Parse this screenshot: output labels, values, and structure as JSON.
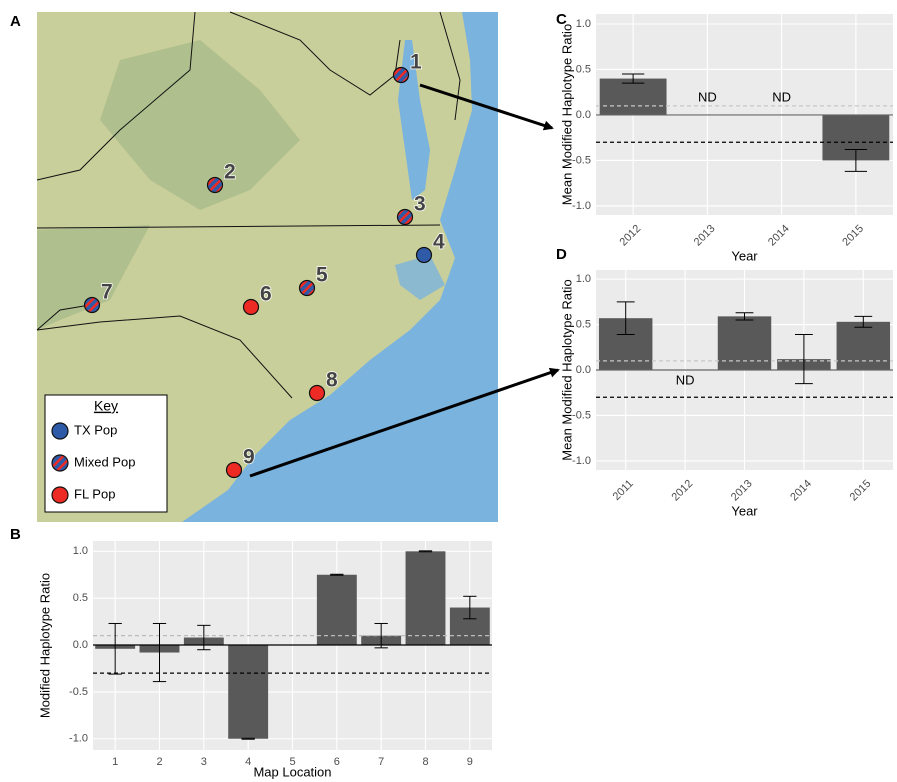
{
  "panels": [
    "A",
    "B",
    "C",
    "D"
  ],
  "map": {
    "key": {
      "title": "Key",
      "entries": [
        {
          "name": "TX Pop",
          "color": "#2f5aa8"
        },
        {
          "name": "Mixed Pop",
          "color": "mixed"
        },
        {
          "name": "FL Pop",
          "color": "#ee2a24"
        }
      ]
    },
    "sites": [
      {
        "label": "1",
        "population": "Mixed Pop"
      },
      {
        "label": "2",
        "population": "Mixed Pop"
      },
      {
        "label": "3",
        "population": "Mixed Pop"
      },
      {
        "label": "4",
        "population": "TX Pop"
      },
      {
        "label": "5",
        "population": "Mixed Pop"
      },
      {
        "label": "6",
        "population": "FL Pop"
      },
      {
        "label": "7",
        "population": "Mixed Pop"
      },
      {
        "label": "8",
        "population": "FL Pop"
      },
      {
        "label": "9",
        "population": "FL Pop"
      }
    ]
  },
  "chart_data": [
    {
      "type": "bar",
      "x_label": "Map Location",
      "y_label": "Modified Haplotype Ratio",
      "categories": [
        "1",
        "2",
        "3",
        "4",
        "5",
        "6",
        "7",
        "8",
        "9"
      ],
      "values": [
        -0.04,
        -0.08,
        0.08,
        -1.0,
        null,
        0.75,
        0.1,
        1.0,
        0.4
      ],
      "errors": [
        0.27,
        0.31,
        0.13,
        0.005,
        null,
        0.005,
        0.13,
        0.005,
        0.12
      ],
      "color": "#595959",
      "ylim": [
        -1.12,
        1.11
      ],
      "yticks": [
        {
          "value": -1.0,
          "label": "-1.0"
        },
        {
          "value": -0.5,
          "label": "-0.5"
        },
        {
          "value": 0.0,
          "label": "0.0"
        },
        {
          "value": 0.5,
          "label": "0.5"
        },
        {
          "value": 1.0,
          "label": "1.0"
        }
      ],
      "hlines": [
        {
          "value": 0,
          "color": "#000000",
          "dashed": false
        },
        {
          "value": 0.1,
          "color": "#bbbbbb",
          "dashed": true
        },
        {
          "value": -0.3,
          "color": "#000000",
          "dashed": true
        }
      ],
      "grid": true
    },
    {
      "type": "bar",
      "x_label": "Year",
      "y_label": "Mean Modified Haplotype Ratio",
      "categories": [
        "2012",
        "2013",
        "2014",
        "2015"
      ],
      "values": [
        0.4,
        null,
        null,
        -0.5
      ],
      "value_labels": [
        null,
        "ND",
        "ND",
        null
      ],
      "errors": [
        0.05,
        null,
        null,
        0.12
      ],
      "color": "#595959",
      "ylim": [
        -1.1,
        1.11
      ],
      "yticks": [
        {
          "value": -1.0,
          "label": "-1.0"
        },
        {
          "value": -0.5,
          "label": "-0.5"
        },
        {
          "value": 0.0,
          "label": "0.0"
        },
        {
          "value": 0.5,
          "label": "0.5"
        },
        {
          "value": 1.0,
          "label": "1.0"
        }
      ],
      "hlines": [
        {
          "value": 0,
          "color": "#666666",
          "dashed": false
        },
        {
          "value": 0.1,
          "color": "#c8c8c8",
          "dashed": true
        },
        {
          "value": -0.3,
          "color": "#000000",
          "dashed": true
        }
      ],
      "grid": true
    },
    {
      "type": "bar",
      "x_label": "Year",
      "y_label": "Mean Modified Haplotype Ratio",
      "categories": [
        "2011",
        "2012",
        "2013",
        "2014",
        "2015"
      ],
      "values": [
        0.57,
        null,
        0.59,
        0.12,
        0.53
      ],
      "value_labels": [
        null,
        "ND",
        null,
        null,
        null
      ],
      "errors": [
        0.18,
        null,
        0.04,
        0.27,
        0.06
      ],
      "color": "#595959",
      "ylim": [
        -1.1,
        1.1
      ],
      "yticks": [
        {
          "value": -1.0,
          "label": "-1.0"
        },
        {
          "value": -0.5,
          "label": "-0.5"
        },
        {
          "value": 0.0,
          "label": "0.0"
        },
        {
          "value": 0.5,
          "label": "0.5"
        },
        {
          "value": 1.0,
          "label": "1.0"
        }
      ],
      "hlines": [
        {
          "value": 0,
          "color": "#666666",
          "dashed": false
        },
        {
          "value": 0.1,
          "color": "#c8c8c8",
          "dashed": true
        },
        {
          "value": -0.3,
          "color": "#000000",
          "dashed": true
        }
      ],
      "grid": true
    }
  ]
}
